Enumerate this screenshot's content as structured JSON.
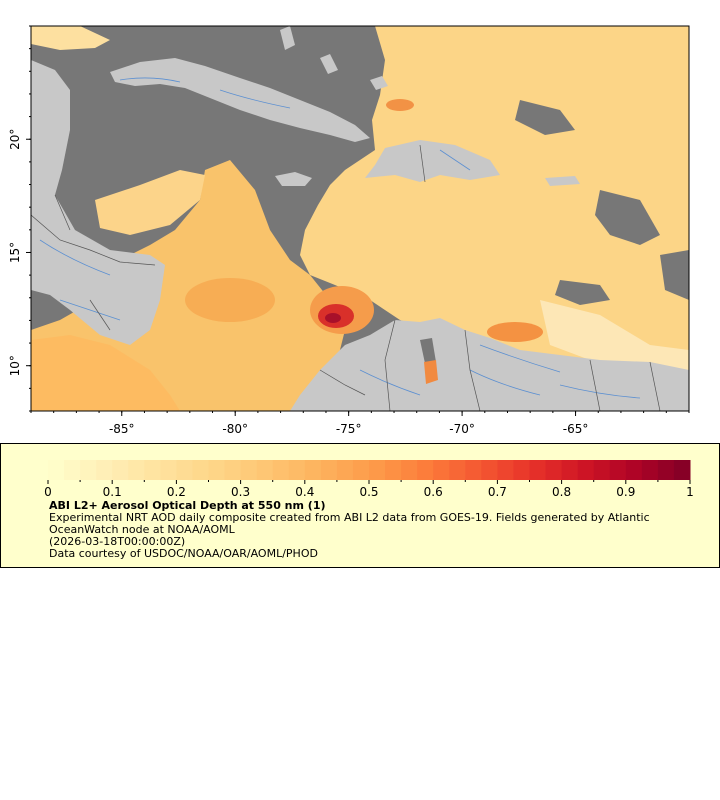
{
  "map": {
    "lon_range": [
      -89,
      -60
    ],
    "lat_range": [
      8,
      25
    ],
    "x_ticks": [
      {
        "value": -85,
        "label": "-85°"
      },
      {
        "value": -80,
        "label": "-80°"
      },
      {
        "value": -75,
        "label": "-75°"
      },
      {
        "value": -70,
        "label": "-70°"
      },
      {
        "value": -65,
        "label": "-65°"
      }
    ],
    "y_ticks": [
      {
        "value": 20,
        "label": "20°"
      },
      {
        "value": 15,
        "label": "15°"
      },
      {
        "value": 10,
        "label": "10°"
      }
    ],
    "colors": {
      "land": "#c8c8c8",
      "nodata": "#777777",
      "low": "#ffe8a8",
      "mid": "#f7a244",
      "high": "#b3002a",
      "rivers": "#5b8fd1",
      "borders": "#555555"
    }
  },
  "legend": {
    "ticks": [
      "0",
      "0.1",
      "0.2",
      "0.3",
      "0.4",
      "0.5",
      "0.6",
      "0.7",
      "0.8",
      "0.9",
      "1"
    ],
    "title": "ABI L2+ Aerosol Optical Depth at 550 nm (1)",
    "description": "Experimental NRT AOD daily composite created from ABI L2 data from GOES-19. Fields generated by Atlantic OceanWatch node at NOAA/AOML",
    "timestamp": "(2026-03-18T00:00:00Z)",
    "credit": "Data courtesy of USDOC/NOAA/OAR/AOML/PHOD",
    "colors": [
      "#ffffcc",
      "#fff0b8",
      "#ffe3a0",
      "#fed78a",
      "#fec775",
      "#fdb45f",
      "#fd9d4b",
      "#fc7f3c",
      "#f55a32",
      "#e8342a",
      "#cf1525",
      "#ad0326",
      "#800026"
    ]
  }
}
